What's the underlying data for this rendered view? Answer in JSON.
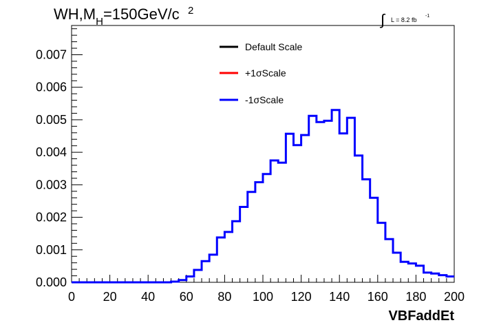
{
  "chart_data": {
    "type": "line",
    "title": {
      "prefix": "WH,M",
      "subscript": "H",
      "main": "=150GeV/c",
      "superscript": "2"
    },
    "lumi_label": {
      "integral_symbol": "∫",
      "text": "L = 8.2 fb",
      "superscript": "-1"
    },
    "xlabel": "VBFaddEt",
    "ylabel": "",
    "xlim": [
      0,
      200
    ],
    "ylim": [
      0,
      0.0079
    ],
    "x_ticks": [
      "0",
      "20",
      "40",
      "60",
      "80",
      "100",
      "120",
      "140",
      "160",
      "180",
      "200"
    ],
    "y_ticks": [
      "0.000",
      "0.001",
      "0.002",
      "0.003",
      "0.004",
      "0.005",
      "0.006",
      "0.007"
    ],
    "bin_width": 4,
    "bin_edges_start": 0,
    "legend": {
      "placement": "top-center",
      "entries": [
        {
          "label": "Default Scale",
          "color": "#000000"
        },
        {
          "label": "+1σScale",
          "color": "#ff0000"
        },
        {
          "label": "-1σScale",
          "color": "#0000ff"
        }
      ]
    },
    "series": [
      {
        "name": "-1σScale",
        "color": "#0000ff",
        "values": [
          0,
          0,
          0,
          0,
          0,
          0,
          0,
          0,
          0,
          0,
          0,
          0,
          0,
          2e-05,
          7e-05,
          0.00018,
          0.00038,
          0.00065,
          0.00085,
          0.00138,
          0.00155,
          0.00188,
          0.00232,
          0.00278,
          0.00308,
          0.00333,
          0.00375,
          0.00368,
          0.00457,
          0.00422,
          0.00453,
          0.00512,
          0.00493,
          0.00497,
          0.0053,
          0.00458,
          0.00506,
          0.0039,
          0.00317,
          0.0026,
          0.00183,
          0.00133,
          0.00091,
          0.00063,
          0.00058,
          0.00051,
          0.0003,
          0.00027,
          0.00022,
          0.00018
        ]
      }
    ],
    "grid": false
  }
}
